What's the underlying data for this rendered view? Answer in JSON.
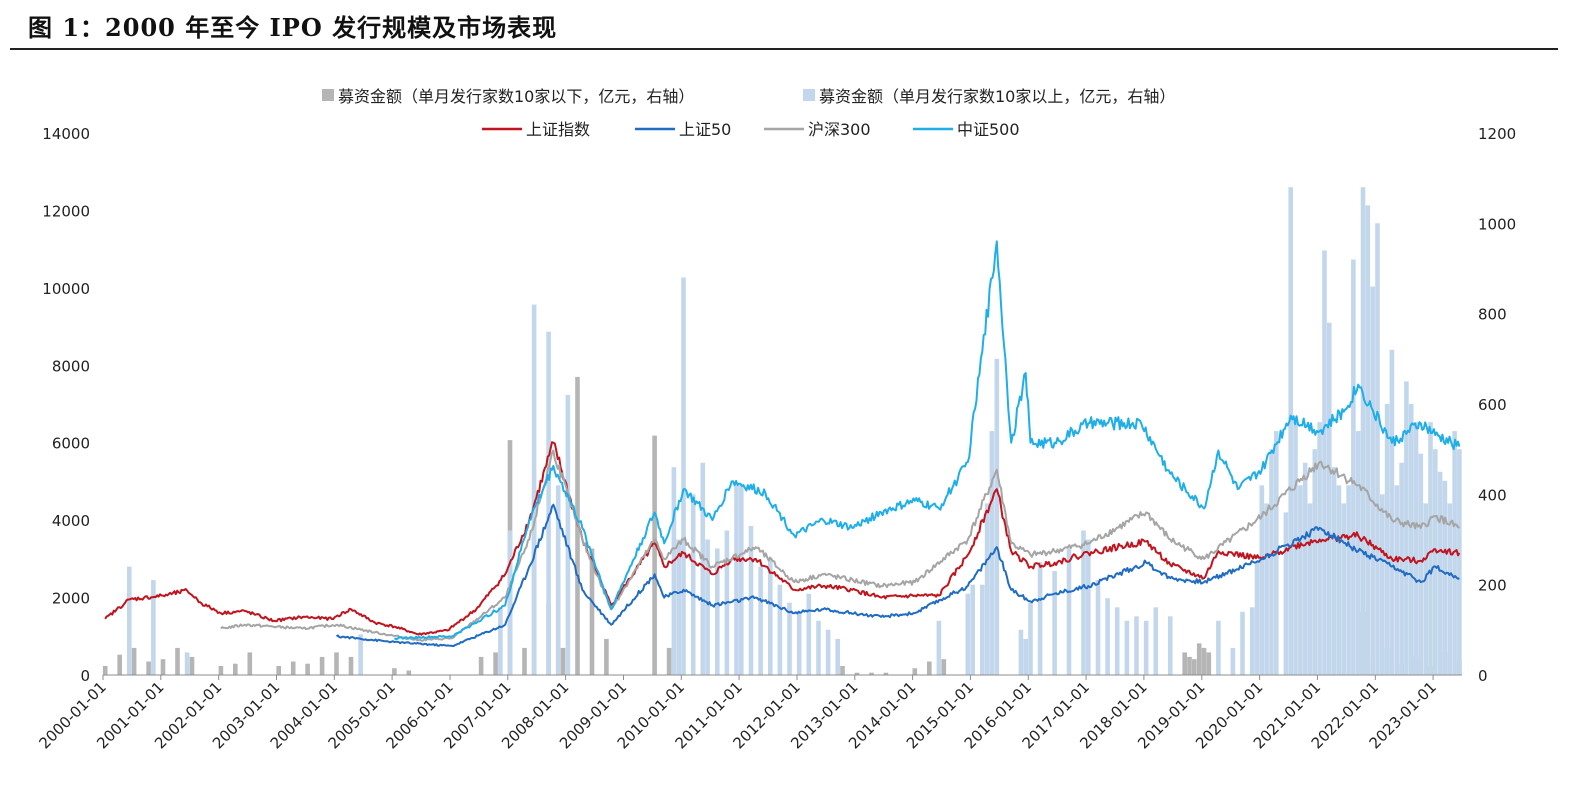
{
  "header": {
    "title": "图 1：2000 年至今 IPO 发行规模及市场表现"
  },
  "chart_data": {
    "type": "line",
    "title": "图 1：2000 年至今 IPO 发行规模及市场表现",
    "left_axis": {
      "ylim": [
        0,
        14000
      ],
      "ticks": [
        "0",
        "2000",
        "4000",
        "6000",
        "8000",
        "10000",
        "12000",
        "14000"
      ]
    },
    "right_axis": {
      "ylim": [
        0,
        1200
      ],
      "ticks": [
        "0",
        "200",
        "400",
        "600",
        "800",
        "1000",
        "1200"
      ]
    },
    "x_ticks": [
      "2000-01-01",
      "2001-01-01",
      "2002-01-01",
      "2003-01-01",
      "2004-01-01",
      "2005-01-01",
      "2006-01-01",
      "2007-01-01",
      "2008-01-01",
      "2009-01-01",
      "2010-01-01",
      "2011-01-01",
      "2012-01-01",
      "2013-01-01",
      "2014-01-01",
      "2015-01-01",
      "2016-01-01",
      "2017-01-01",
      "2018-01-01",
      "2019-01-01",
      "2020-01-01",
      "2021-01-01",
      "2022-01-01",
      "2023-01-01"
    ],
    "x_range": [
      "2000-01-01",
      "2023-07-01"
    ],
    "legend_placement": "top-center",
    "grid": false,
    "series": [
      {
        "name": "募资金额（单月发行家数10家以下，亿元，右轴）",
        "kind": "bar",
        "axis": "right",
        "color": "#b5b5b5",
        "x": [
          "2000-01",
          "2000-04",
          "2000-07",
          "2000-10",
          "2001-01",
          "2001-04",
          "2001-07",
          "2002-01",
          "2002-04",
          "2002-07",
          "2003-01",
          "2003-04",
          "2003-07",
          "2003-10",
          "2004-01",
          "2004-04",
          "2005-01",
          "2005-04",
          "2006-07",
          "2006-10",
          "2007-01",
          "2007-04",
          "2007-06",
          "2007-09",
          "2007-12",
          "2008-03",
          "2008-06",
          "2008-09",
          "2009-07",
          "2009-10",
          "2012-10",
          "2013-01",
          "2013-04",
          "2013-07",
          "2014-01",
          "2014-04",
          "2014-07",
          "2018-09",
          "2018-10",
          "2018-11",
          "2018-12",
          "2019-01",
          "2019-02",
          "2021-10",
          "2021-12",
          "2022-03",
          "2022-06",
          "2022-09",
          "2022-12",
          "2023-03",
          "2023-06"
        ],
        "values": [
          20,
          45,
          60,
          30,
          35,
          60,
          40,
          20,
          25,
          50,
          20,
          30,
          25,
          40,
          50,
          40,
          15,
          10,
          40,
          50,
          520,
          60,
          400,
          160,
          60,
          660,
          280,
          80,
          530,
          60,
          20,
          5,
          5,
          5,
          15,
          30,
          35,
          50,
          40,
          35,
          70,
          60,
          50,
          140,
          40,
          60,
          25,
          40,
          20,
          50,
          30
        ]
      },
      {
        "name": "募资金额（单月发行家数10家以上，亿元，右轴）",
        "kind": "bar",
        "axis": "right",
        "color": "#c3d7ec",
        "x": [
          "2000-06",
          "2000-11",
          "2001-06",
          "2004-06",
          "2006-11",
          "2007-01",
          "2007-06",
          "2007-09",
          "2007-11",
          "2008-01",
          "2009-11",
          "2009-12",
          "2010-01",
          "2010-03",
          "2010-05",
          "2010-06",
          "2010-08",
          "2010-10",
          "2010-12",
          "2011-01",
          "2011-03",
          "2011-05",
          "2011-07",
          "2011-09",
          "2011-11",
          "2012-01",
          "2012-03",
          "2012-05",
          "2012-07",
          "2012-09",
          "2014-06",
          "2014-12",
          "2015-01",
          "2015-03",
          "2015-04",
          "2015-05",
          "2015-06",
          "2015-11",
          "2015-12",
          "2016-01",
          "2016-03",
          "2016-06",
          "2016-09",
          "2016-12",
          "2017-01",
          "2017-03",
          "2017-05",
          "2017-07",
          "2017-09",
          "2017-11",
          "2018-01",
          "2018-03",
          "2018-06",
          "2019-04",
          "2019-07",
          "2019-09",
          "2019-11",
          "2019-12",
          "2020-01",
          "2020-02",
          "2020-03",
          "2020-04",
          "2020-06",
          "2020-07",
          "2020-08",
          "2020-09",
          "2020-10",
          "2020-11",
          "2020-12",
          "2021-01",
          "2021-02",
          "2021-03",
          "2021-04",
          "2021-05",
          "2021-06",
          "2021-07",
          "2021-08",
          "2021-09",
          "2021-10",
          "2021-11",
          "2021-12",
          "2022-01",
          "2022-02",
          "2022-03",
          "2022-04",
          "2022-05",
          "2022-06",
          "2022-07",
          "2022-08",
          "2022-09",
          "2022-10",
          "2022-11",
          "2022-12",
          "2023-01",
          "2023-02",
          "2023-03",
          "2023-04",
          "2023-05",
          "2023-06"
        ],
        "values": [
          240,
          210,
          50,
          90,
          150,
          320,
          820,
          760,
          420,
          620,
          460,
          300,
          880,
          400,
          470,
          300,
          280,
          320,
          420,
          420,
          330,
          240,
          260,
          200,
          160,
          140,
          180,
          120,
          100,
          80,
          120,
          180,
          200,
          200,
          380,
          540,
          700,
          100,
          80,
          160,
          250,
          230,
          280,
          320,
          300,
          210,
          170,
          150,
          120,
          130,
          120,
          150,
          130,
          120,
          60,
          140,
          150,
          250,
          420,
          380,
          500,
          540,
          360,
          1080,
          560,
          420,
          470,
          380,
          500,
          560,
          940,
          780,
          460,
          420,
          380,
          420,
          920,
          540,
          1080,
          1040,
          860,
          1000,
          400,
          600,
          720,
          420,
          470,
          650,
          600,
          560,
          490,
          380,
          560,
          500,
          450,
          430,
          380,
          540,
          500
        ]
      },
      {
        "name": "上证指数",
        "kind": "line",
        "axis": "left",
        "color": "#c0141e",
        "x": [
          "2000-01",
          "2000-06",
          "2001-01",
          "2001-06",
          "2001-09",
          "2002-01",
          "2002-06",
          "2002-12",
          "2003-06",
          "2003-12",
          "2004-04",
          "2004-09",
          "2005-01",
          "2005-06",
          "2005-12",
          "2006-06",
          "2006-12",
          "2007-05",
          "2007-10",
          "2008-04",
          "2008-10",
          "2009-07",
          "2009-09",
          "2010-01",
          "2010-07",
          "2010-11",
          "2011-04",
          "2011-12",
          "2012-06",
          "2012-12",
          "2013-06",
          "2014-01",
          "2014-06",
          "2014-12",
          "2015-06",
          "2015-09",
          "2016-01",
          "2016-06",
          "2017-01",
          "2018-01",
          "2018-06",
          "2019-01",
          "2019-04",
          "2020-01",
          "2020-07",
          "2021-01",
          "2021-09",
          "2022-04",
          "2022-10",
          "2023-01",
          "2023-06"
        ],
        "values": [
          1450,
          1950,
          2050,
          2180,
          1850,
          1600,
          1650,
          1400,
          1500,
          1450,
          1700,
          1350,
          1250,
          1050,
          1150,
          1700,
          2600,
          4000,
          6000,
          3500,
          1800,
          3400,
          2800,
          3150,
          2600,
          3000,
          3000,
          2200,
          2300,
          2200,
          2000,
          2050,
          2050,
          3100,
          4800,
          3200,
          2800,
          2900,
          3150,
          3450,
          2850,
          2500,
          3200,
          3000,
          3300,
          3500,
          3600,
          3000,
          2950,
          3250,
          3150
        ]
      },
      {
        "name": "上证50",
        "kind": "line",
        "axis": "left",
        "color": "#1f6cc2",
        "x": [
          "2004-01",
          "2005-01",
          "2006-01",
          "2006-12",
          "2007-05",
          "2007-10",
          "2008-04",
          "2008-10",
          "2009-07",
          "2009-09",
          "2010-01",
          "2010-07",
          "2011-04",
          "2011-12",
          "2012-06",
          "2013-06",
          "2014-01",
          "2014-12",
          "2015-06",
          "2015-09",
          "2016-01",
          "2016-06",
          "2017-01",
          "2018-01",
          "2018-06",
          "2019-01",
          "2020-01",
          "2021-01",
          "2021-09",
          "2022-04",
          "2022-10",
          "2023-01",
          "2023-06"
        ],
        "values": [
          1000,
          850,
          750,
          1300,
          2800,
          4400,
          2200,
          1300,
          2600,
          2000,
          2200,
          1800,
          2000,
          1600,
          1700,
          1500,
          1600,
          2300,
          3300,
          2200,
          1900,
          2100,
          2300,
          2900,
          2500,
          2400,
          3000,
          3800,
          3200,
          2800,
          2400,
          2800,
          2500
        ]
      },
      {
        "name": "沪深300",
        "kind": "line",
        "axis": "left",
        "color": "#a5a5a5",
        "x": [
          "2002-01",
          "2002-06",
          "2003-06",
          "2004-01",
          "2004-09",
          "2005-06",
          "2006-01",
          "2006-12",
          "2007-05",
          "2007-10",
          "2008-04",
          "2008-10",
          "2009-07",
          "2009-09",
          "2010-01",
          "2010-07",
          "2011-04",
          "2011-12",
          "2012-06",
          "2013-06",
          "2014-01",
          "2014-12",
          "2015-06",
          "2015-09",
          "2016-01",
          "2016-06",
          "2017-01",
          "2018-01",
          "2018-06",
          "2019-01",
          "2020-01",
          "2021-01",
          "2021-09",
          "2022-04",
          "2022-10",
          "2023-01",
          "2023-06"
        ],
        "values": [
          1200,
          1300,
          1200,
          1300,
          1100,
          900,
          950,
          2000,
          3500,
          5800,
          3500,
          1700,
          3500,
          3000,
          3500,
          2800,
          3300,
          2400,
          2600,
          2300,
          2400,
          3500,
          5300,
          3400,
          3100,
          3200,
          3400,
          4200,
          3500,
          3000,
          4100,
          5500,
          4900,
          4000,
          3800,
          4100,
          3800
        ]
      },
      {
        "name": "中证500",
        "kind": "line",
        "axis": "left",
        "color": "#20aee8",
        "x": [
          "2005-01",
          "2006-01",
          "2006-12",
          "2007-05",
          "2007-10",
          "2008-04",
          "2008-10",
          "2009-07",
          "2009-09",
          "2010-01",
          "2010-07",
          "2010-11",
          "2011-06",
          "2011-12",
          "2012-06",
          "2012-12",
          "2013-06",
          "2014-01",
          "2014-06",
          "2014-12",
          "2015-06",
          "2015-09",
          "2015-12",
          "2016-01",
          "2016-06",
          "2017-01",
          "2017-12",
          "2018-06",
          "2019-01",
          "2019-04",
          "2019-08",
          "2020-01",
          "2020-07",
          "2021-01",
          "2021-06",
          "2021-09",
          "2022-04",
          "2022-10",
          "2023-01",
          "2023-06"
        ],
        "values": [
          950,
          1000,
          1800,
          4000,
          5400,
          3800,
          1700,
          4200,
          3400,
          4800,
          4000,
          5000,
          4700,
          3600,
          4000,
          3800,
          4200,
          4500,
          4300,
          5500,
          11200,
          6000,
          7800,
          6000,
          6000,
          6500,
          6500,
          5200,
          4300,
          5800,
          4800,
          5300,
          6700,
          6300,
          6800,
          7500,
          6000,
          6500,
          6200,
          5900
        ]
      }
    ]
  }
}
